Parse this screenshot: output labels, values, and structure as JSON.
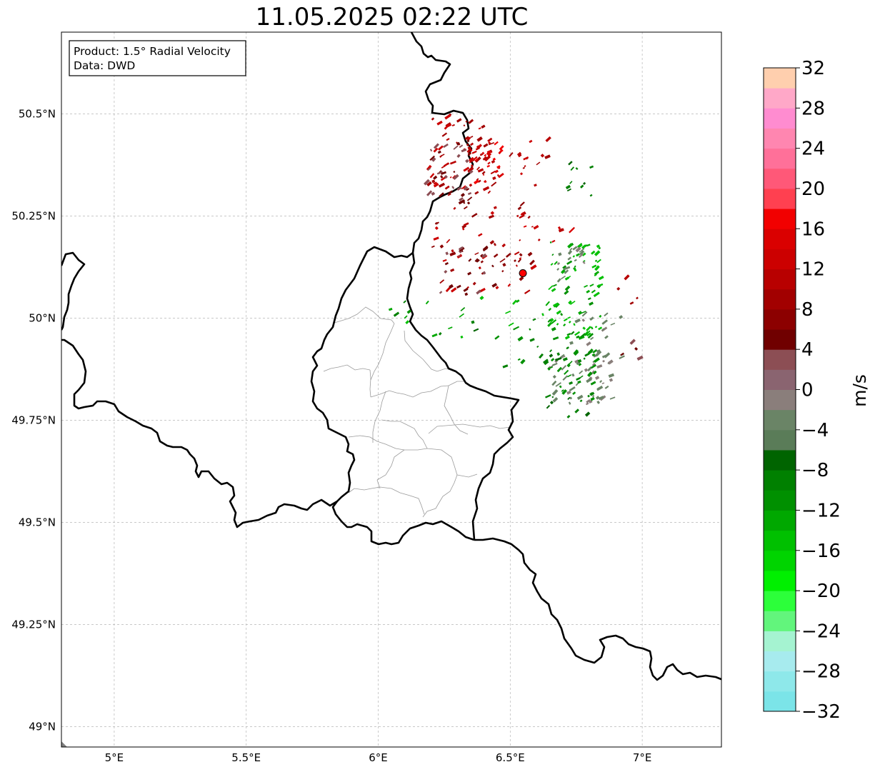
{
  "title": "11.05.2025 02:22 UTC",
  "info_box": {
    "line1": "Product: 1.5° Radial Velocity",
    "line2": "Data: DWD"
  },
  "map": {
    "lon_range": [
      4.8,
      7.3
    ],
    "lat_range": [
      48.95,
      50.7
    ],
    "x_ticks": [
      {
        "value": 5.0,
        "label": "5°E"
      },
      {
        "value": 5.5,
        "label": "5.5°E"
      },
      {
        "value": 6.0,
        "label": "6°E"
      },
      {
        "value": 6.5,
        "label": "6.5°E"
      },
      {
        "value": 7.0,
        "label": "7°E"
      }
    ],
    "y_ticks": [
      {
        "value": 50.5,
        "label": "50.5°N"
      },
      {
        "value": 50.25,
        "label": "50.25°N"
      },
      {
        "value": 50.0,
        "label": "50°N"
      },
      {
        "value": 49.75,
        "label": "49.75°N"
      },
      {
        "value": 49.5,
        "label": "49.5°N"
      },
      {
        "value": 49.25,
        "label": "49.25°N"
      },
      {
        "value": 49.0,
        "label": "49°N"
      }
    ],
    "grid": true,
    "radar_site": {
      "lon": 6.548,
      "lat": 50.11,
      "color": "#ff0000"
    },
    "velocity_clusters": [
      {
        "lon": 6.3,
        "lat": 50.4,
        "w": 0.12,
        "h": 0.1,
        "n": 70,
        "v": [
          8,
          14
        ]
      },
      {
        "lon": 6.26,
        "lat": 50.36,
        "w": 0.09,
        "h": 0.08,
        "n": 40,
        "v": [
          2,
          6
        ]
      },
      {
        "lon": 6.4,
        "lat": 50.38,
        "w": 0.07,
        "h": 0.05,
        "n": 35,
        "v": [
          10,
          18
        ]
      },
      {
        "lon": 6.52,
        "lat": 50.38,
        "w": 0.12,
        "h": 0.06,
        "n": 18,
        "v": [
          8,
          14
        ]
      },
      {
        "lon": 6.4,
        "lat": 50.17,
        "w": 0.2,
        "h": 0.11,
        "n": 60,
        "v": [
          6,
          14
        ]
      },
      {
        "lon": 6.33,
        "lat": 50.12,
        "w": 0.1,
        "h": 0.06,
        "n": 25,
        "v": [
          2,
          6
        ]
      },
      {
        "lon": 6.62,
        "lat": 50.23,
        "w": 0.12,
        "h": 0.05,
        "n": 12,
        "v": [
          10,
          16
        ]
      },
      {
        "lon": 6.74,
        "lat": 50.07,
        "w": 0.1,
        "h": 0.12,
        "n": 80,
        "v": [
          -16,
          -10
        ]
      },
      {
        "lon": 6.73,
        "lat": 50.13,
        "w": 0.06,
        "h": 0.04,
        "n": 18,
        "v": [
          -4,
          -1
        ]
      },
      {
        "lon": 6.76,
        "lat": 49.85,
        "w": 0.12,
        "h": 0.06,
        "n": 55,
        "v": [
          -4,
          -1
        ]
      },
      {
        "lon": 6.72,
        "lat": 49.86,
        "w": 0.1,
        "h": 0.07,
        "n": 40,
        "v": [
          -12,
          -8
        ]
      },
      {
        "lon": 6.82,
        "lat": 49.95,
        "w": 0.1,
        "h": 0.06,
        "n": 20,
        "v": [
          -4,
          -1
        ]
      },
      {
        "lon": 6.3,
        "lat": 50.0,
        "w": 0.3,
        "h": 0.05,
        "n": 18,
        "v": [
          -16,
          -8
        ]
      },
      {
        "lon": 6.55,
        "lat": 49.92,
        "w": 0.2,
        "h": 0.06,
        "n": 15,
        "v": [
          -12,
          -6
        ]
      },
      {
        "lon": 6.63,
        "lat": 50.0,
        "w": 0.15,
        "h": 0.04,
        "n": 12,
        "v": [
          -16,
          -10
        ]
      },
      {
        "lon": 6.7,
        "lat": 49.78,
        "w": 0.1,
        "h": 0.03,
        "n": 8,
        "v": [
          -10,
          -6
        ]
      },
      {
        "lon": 6.78,
        "lat": 50.34,
        "w": 0.1,
        "h": 0.04,
        "n": 10,
        "v": [
          -10,
          -6
        ]
      },
      {
        "lon": 6.94,
        "lat": 50.06,
        "w": 0.04,
        "h": 0.05,
        "n": 4,
        "v": [
          8,
          12
        ]
      },
      {
        "lon": 6.96,
        "lat": 49.92,
        "w": 0.05,
        "h": 0.03,
        "n": 4,
        "v": [
          2,
          8
        ]
      }
    ]
  },
  "colorbar": {
    "label": "m/s",
    "min": -32,
    "max": 32,
    "step": 2,
    "ticks": [
      {
        "value": 32,
        "label": "32"
      },
      {
        "value": 28,
        "label": "28"
      },
      {
        "value": 24,
        "label": "24"
      },
      {
        "value": 20,
        "label": "20"
      },
      {
        "value": 16,
        "label": "16"
      },
      {
        "value": 12,
        "label": "12"
      },
      {
        "value": 8,
        "label": "8"
      },
      {
        "value": 4,
        "label": "4"
      },
      {
        "value": 0,
        "label": "0"
      },
      {
        "value": -4,
        "label": "−4"
      },
      {
        "value": -8,
        "label": "−8"
      },
      {
        "value": -12,
        "label": "−12"
      },
      {
        "value": -16,
        "label": "−16"
      },
      {
        "value": -20,
        "label": "−20"
      },
      {
        "value": -24,
        "label": "−24"
      },
      {
        "value": -28,
        "label": "−28"
      },
      {
        "value": -32,
        "label": "−32"
      }
    ],
    "colors": [
      "#7be4e8",
      "#8ee8ea",
      "#a7ebee",
      "#a5f3d1",
      "#62f57c",
      "#2cff3a",
      "#00f000",
      "#00d400",
      "#00c000",
      "#00a800",
      "#009000",
      "#008000",
      "#006400",
      "#5a7c58",
      "#6a8466",
      "#8a7e7b",
      "#8a6470",
      "#8c4e54",
      "#700000",
      "#8c0000",
      "#a20000",
      "#b80000",
      "#cc0000",
      "#da0000",
      "#f20000",
      "#ff4050",
      "#ff5878",
      "#ff7099",
      "#ff86b0",
      "#ff8cd0",
      "#ffa8c8",
      "#ffcfae"
    ]
  }
}
